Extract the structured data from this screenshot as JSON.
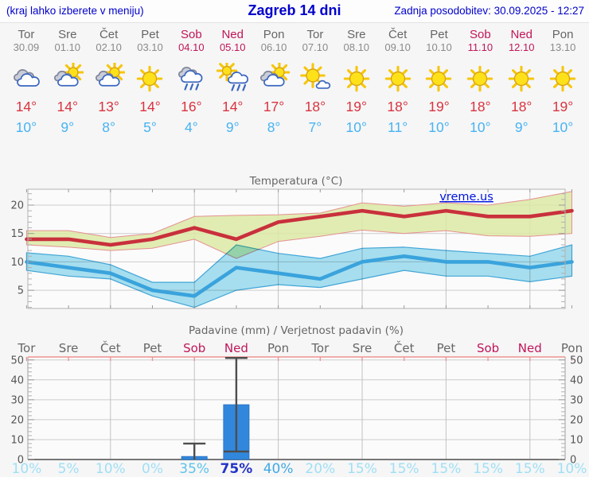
{
  "header": {
    "left_note": "(kraj lahko izberete v meniju)",
    "title": "Zagreb 14 dni",
    "updated": "Zadnja posodobitev: 30.09.2025 - 12:27"
  },
  "days": [
    {
      "name": "Tor",
      "date": "30.09",
      "weekend": false,
      "icon": "cloudy",
      "t_max": 14,
      "t_min": 10,
      "precip_prob_pct": 10
    },
    {
      "name": "Sre",
      "date": "01.10",
      "weekend": false,
      "icon": "partly-cloudy",
      "t_max": 14,
      "t_min": 9,
      "precip_prob_pct": 5
    },
    {
      "name": "Čet",
      "date": "02.10",
      "weekend": false,
      "icon": "partly-cloudy",
      "t_max": 13,
      "t_min": 8,
      "precip_prob_pct": 10
    },
    {
      "name": "Pet",
      "date": "03.10",
      "weekend": false,
      "icon": "sunny",
      "t_max": 14,
      "t_min": 5,
      "precip_prob_pct": 0
    },
    {
      "name": "Sob",
      "date": "04.10",
      "weekend": true,
      "icon": "rain",
      "t_max": 16,
      "t_min": 4,
      "precip_prob_pct": 35
    },
    {
      "name": "Ned",
      "date": "05.10",
      "weekend": true,
      "icon": "sun-cloud-rain",
      "t_max": 14,
      "t_min": 9,
      "precip_prob_pct": 75
    },
    {
      "name": "Pon",
      "date": "06.10",
      "weekend": false,
      "icon": "partly-cloudy",
      "t_max": 17,
      "t_min": 8,
      "precip_prob_pct": 40
    },
    {
      "name": "Tor",
      "date": "07.10",
      "weekend": false,
      "icon": "mostly-sunny",
      "t_max": 18,
      "t_min": 7,
      "precip_prob_pct": 20
    },
    {
      "name": "Sre",
      "date": "08.10",
      "weekend": false,
      "icon": "sunny",
      "t_max": 19,
      "t_min": 10,
      "precip_prob_pct": 15
    },
    {
      "name": "Čet",
      "date": "09.10",
      "weekend": false,
      "icon": "sunny",
      "t_max": 18,
      "t_min": 11,
      "precip_prob_pct": 15
    },
    {
      "name": "Pet",
      "date": "10.10",
      "weekend": false,
      "icon": "sunny",
      "t_max": 19,
      "t_min": 10,
      "precip_prob_pct": 15
    },
    {
      "name": "Sob",
      "date": "11.10",
      "weekend": true,
      "icon": "sunny",
      "t_max": 18,
      "t_min": 10,
      "precip_prob_pct": 15
    },
    {
      "name": "Ned",
      "date": "12.10",
      "weekend": true,
      "icon": "sunny",
      "t_max": 18,
      "t_min": 9,
      "precip_prob_pct": 15
    },
    {
      "name": "Pon",
      "date": "13.10",
      "weekend": false,
      "icon": "sunny",
      "t_max": 19,
      "t_min": 10,
      "precip_prob_pct": 10
    }
  ],
  "chart_data": [
    {
      "type": "line",
      "title": "Temperatura (°C)",
      "watermark": "vreme.us",
      "categories": [
        "Tor 30.09",
        "Sre 01.10",
        "Čet 02.10",
        "Pet 03.10",
        "Sob 04.10",
        "Ned 05.10",
        "Pon 06.10",
        "Tor 07.10",
        "Sre 08.10",
        "Čet 09.10",
        "Pet 10.10",
        "Sob 11.10",
        "Ned 12.10",
        "Pon 13.10"
      ],
      "y_ticks": [
        5,
        10,
        15,
        20
      ],
      "ylim": [
        1.8,
        22.8
      ],
      "grid": true,
      "series": [
        {
          "name": "maksimalna temperatura",
          "role": "max-line",
          "color": "#c9303c",
          "values": [
            14,
            14,
            13,
            14,
            16,
            14,
            17,
            18,
            19,
            18,
            19,
            18,
            18,
            19
          ]
        },
        {
          "name": "razpon maksimalne - zgornja meja",
          "role": "max-band-hi",
          "color": "#dce9a5",
          "values": [
            15.5,
            15.5,
            14.3,
            15,
            18,
            18.2,
            18.3,
            18.6,
            20.4,
            19.8,
            20.4,
            20,
            21,
            22.4
          ]
        },
        {
          "name": "razpon maksimalne - spodnja meja",
          "role": "max-band-lo",
          "color": "#dce9a5",
          "values": [
            13,
            12.6,
            12,
            12.4,
            14,
            10.6,
            13.6,
            14.5,
            15.6,
            15,
            15.5,
            14.6,
            14.5,
            15
          ]
        },
        {
          "name": "minimalna temperatura",
          "role": "min-line",
          "color": "#3aa3dc",
          "values": [
            10,
            9,
            8,
            5,
            4,
            9,
            8,
            7,
            10,
            11,
            10,
            10,
            9,
            10
          ]
        },
        {
          "name": "razpon minimalne - zgornja meja",
          "role": "min-band-hi",
          "color": "#a9e2f3",
          "values": [
            11.6,
            11,
            9.5,
            6.4,
            6.4,
            13,
            11.5,
            10.6,
            12.4,
            12.6,
            12,
            11.5,
            11,
            13
          ]
        },
        {
          "name": "razpon minimalne - spodnja meja",
          "role": "min-band-lo",
          "color": "#a9e2f3",
          "values": [
            8.5,
            7.5,
            7,
            4,
            2,
            5,
            6,
            5.5,
            7,
            8.5,
            7.5,
            7.5,
            6.5,
            7.5
          ]
        }
      ]
    },
    {
      "type": "bar",
      "title": "Padavine (mm) / Verjetnost padavin (%)",
      "categories": [
        "Tor",
        "Sre",
        "Čet",
        "Pet",
        "Sob",
        "Ned",
        "Pon",
        "Tor",
        "Sre",
        "Čet",
        "Pet",
        "Sob",
        "Ned",
        "Pon"
      ],
      "values_mm": [
        0,
        0,
        0,
        0,
        1.5,
        27.5,
        0,
        0,
        0,
        0,
        0,
        0,
        0,
        0
      ],
      "whisker_max_mm": [
        null,
        null,
        null,
        null,
        8,
        51,
        null,
        null,
        null,
        null,
        null,
        null,
        null,
        null
      ],
      "whisker_min_mm": [
        null,
        null,
        null,
        null,
        null,
        4,
        null,
        null,
        null,
        null,
        null,
        null,
        null,
        null
      ],
      "probabilities_pct": [
        10,
        5,
        10,
        0,
        35,
        75,
        40,
        20,
        15,
        15,
        15,
        15,
        15,
        10
      ],
      "y_ticks": [
        0,
        10,
        20,
        30,
        40,
        50
      ],
      "ylim": [
        0,
        51.5
      ],
      "grid": true
    }
  ],
  "colors": {
    "header_text": "#0000cc",
    "weekday": "#666666",
    "weekend": "#c11558",
    "date": "#8a8a8a",
    "t_max_text": "#d9333f",
    "t_min_text": "#47b3f2",
    "temp_line_max": "#c9303c",
    "temp_line_min": "#3aa3dc",
    "band_max_fill": "#dce9a5",
    "band_max_edge": "#e59090",
    "band_min_fill": "#a9e2f3",
    "band_min_edge": "#43a8da",
    "bar_fill": "#3187dc",
    "whisker": "#4d4d4d",
    "axis_text": "#555555",
    "chart_title": "#666666",
    "watermark": "#0013e0",
    "grid_line": "#cccccc",
    "plot_border": "#b3b3b3",
    "precip_top_line": "#ef9191",
    "prob_low": "#9fdff5",
    "prob_mid": "#5ec2ec",
    "prob_high": "#3fa9e6",
    "prob_very_high": "#2433c9"
  }
}
